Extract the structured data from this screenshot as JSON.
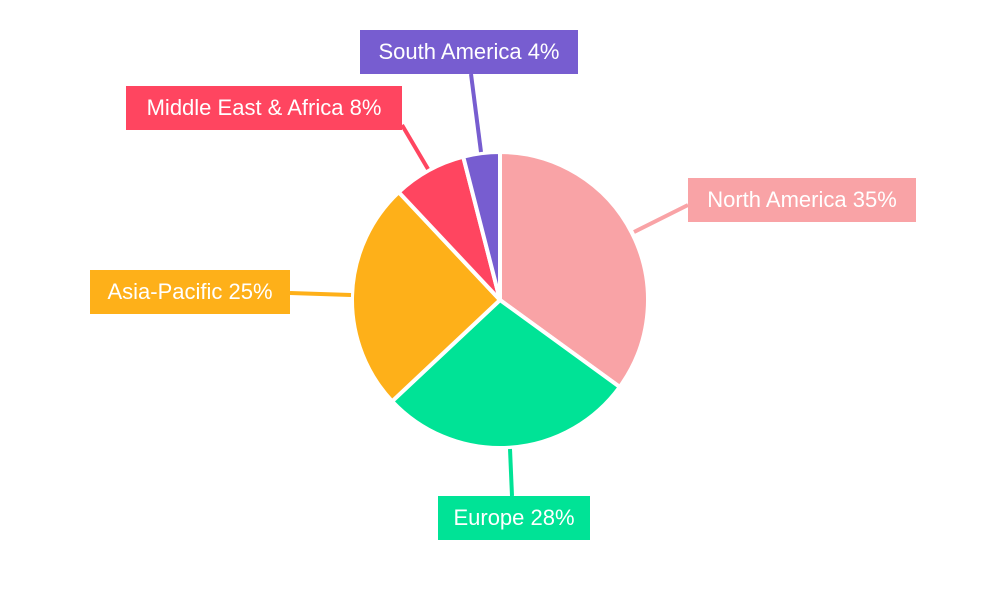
{
  "chart_data": {
    "type": "pie",
    "start_angle": "top, clockwise",
    "legend": "none",
    "slices": [
      {
        "label": "North America",
        "value": 35,
        "text": "North America 35%",
        "color": "#F9A3A6"
      },
      {
        "label": "Europe",
        "value": 28,
        "text": "Europe 28%",
        "color": "#00E396"
      },
      {
        "label": "Asia-Pacific",
        "value": 25,
        "text": "Asia-Pacific 25%",
        "color": "#FEB019"
      },
      {
        "label": "Middle East & Africa",
        "value": 8,
        "text": "Middle East & Africa 8%",
        "color": "#FF4560"
      },
      {
        "label": "South America",
        "value": 4,
        "text": "South America 4%",
        "color": "#775DD0"
      }
    ]
  }
}
